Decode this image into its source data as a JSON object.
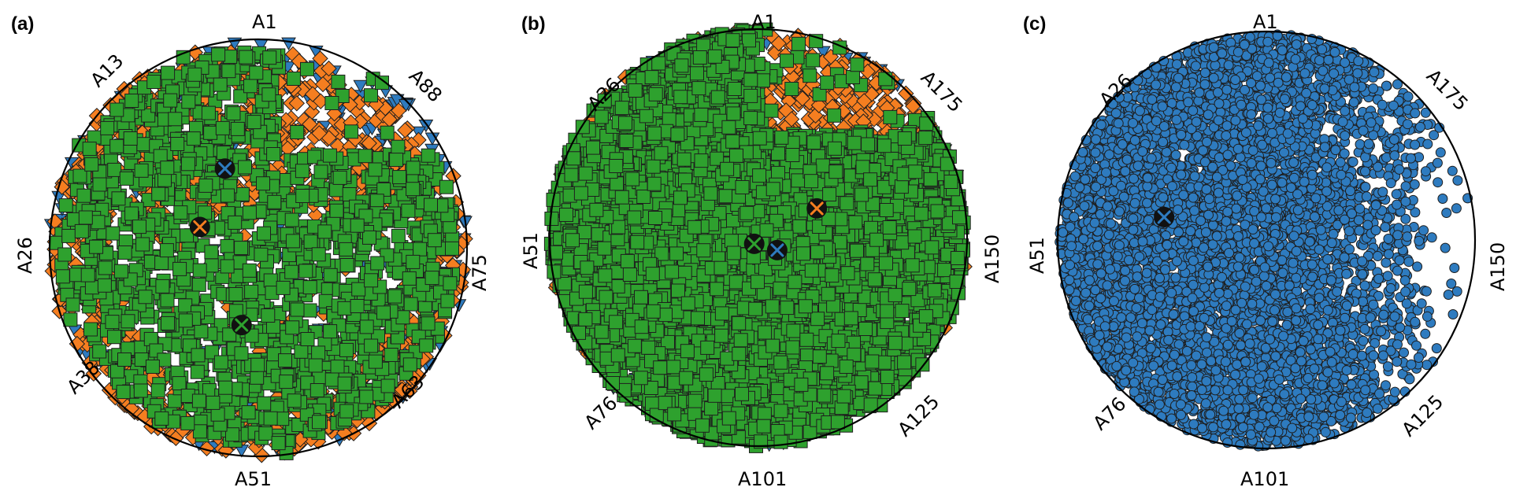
{
  "chart_data": [
    {
      "type": "scatter",
      "panel": "(a)",
      "anchor_labels": [
        "A1",
        "A13",
        "A26",
        "A38",
        "A51",
        "A63",
        "A75",
        "A88"
      ],
      "series": [
        {
          "marker": "triangle-down",
          "color": "#2e7bbf",
          "count": 330
        },
        {
          "marker": "diamond",
          "color": "#f57e20",
          "count": 1050
        },
        {
          "marker": "square",
          "color": "#2ea12e",
          "count": 1450
        }
      ],
      "centroids": [
        {
          "color": "#2e7bbf",
          "x": -0.16,
          "y": 0.38
        },
        {
          "color": "#f57e20",
          "x": -0.28,
          "y": 0.1
        },
        {
          "color": "#2ea12e",
          "x": -0.08,
          "y": -0.37
        }
      ]
    },
    {
      "type": "scatter",
      "panel": "(b)",
      "anchor_labels": [
        "A1",
        "A26",
        "A51",
        "A76",
        "A101",
        "A125",
        "A150",
        "A175"
      ],
      "series": [
        {
          "marker": "triangle-down",
          "color": "#2e7bbf",
          "count": 90
        },
        {
          "marker": "diamond",
          "color": "#f57e20",
          "count": 280
        },
        {
          "marker": "square",
          "color": "#2ea12e",
          "count": 5200
        }
      ],
      "centroids": [
        {
          "color": "#2e7bbf",
          "x": 0.09,
          "y": -0.06
        },
        {
          "color": "#f57e20",
          "x": 0.28,
          "y": 0.14
        },
        {
          "color": "#2ea12e",
          "x": -0.02,
          "y": -0.03
        }
      ]
    },
    {
      "type": "scatter",
      "panel": "(c)",
      "anchor_labels": [
        "A1",
        "A26",
        "A51",
        "A76",
        "A101",
        "A125",
        "A150",
        "A175"
      ],
      "series": [
        {
          "marker": "circle",
          "color": "#2e7bbf",
          "count": 6200
        }
      ],
      "centroids": [
        {
          "color": "#2e7bbf",
          "x": -0.49,
          "y": 0.11
        }
      ]
    }
  ]
}
